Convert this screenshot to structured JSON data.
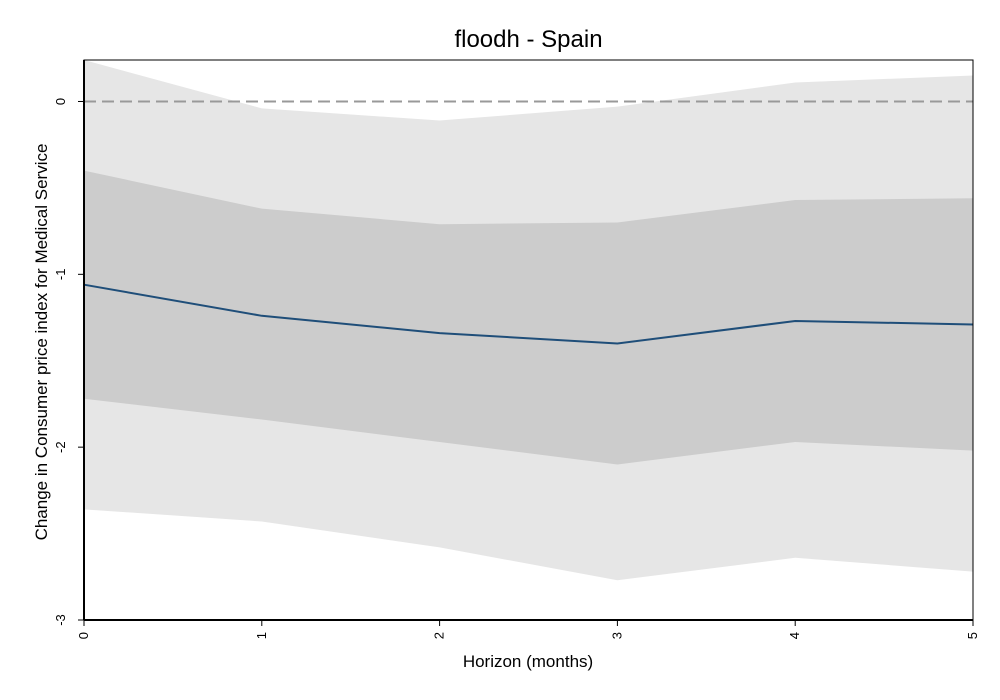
{
  "chart_data": {
    "type": "line",
    "title": "floodh - Spain",
    "xlabel": "Horizon (months)",
    "ylabel": "Change in Consumer price index for  Medical Service",
    "x": [
      0,
      1,
      2,
      3,
      4,
      5
    ],
    "xlim": [
      0,
      5
    ],
    "ylim": [
      -3,
      0.24
    ],
    "xticks": [
      "0",
      "1",
      "2",
      "3",
      "4",
      "5"
    ],
    "yticks": [
      {
        "value": 0,
        "label": "0"
      },
      {
        "value": -1,
        "label": "-1"
      },
      {
        "value": -2,
        "label": "-2"
      },
      {
        "value": -3,
        "label": "-3"
      }
    ],
    "series": [
      {
        "values": [
          -1.06,
          -1.24,
          -1.34,
          -1.4,
          -1.27,
          -1.29
        ],
        "color": "#1f4e79"
      }
    ],
    "bands": [
      {
        "lower": [
          -2.36,
          -2.43,
          -2.58,
          -2.77,
          -2.64,
          -2.72
        ],
        "upper": [
          0.24,
          -0.04,
          -0.11,
          -0.03,
          0.11,
          0.15
        ],
        "color": "#e6e6e6"
      },
      {
        "lower": [
          -1.72,
          -1.84,
          -1.97,
          -2.1,
          -1.97,
          -2.02
        ],
        "upper": [
          -0.4,
          -0.62,
          -0.71,
          -0.7,
          -0.57,
          -0.56
        ],
        "color": "#cccccc"
      }
    ],
    "reference_line": {
      "y": 0,
      "style": "dashed",
      "color": "#999999"
    },
    "grid": false,
    "legend": "none"
  }
}
